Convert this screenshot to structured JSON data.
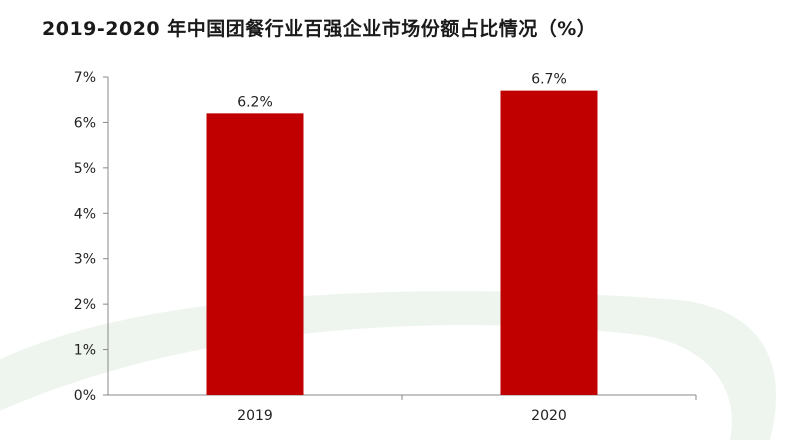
{
  "title": "2019-2020 年中国团餐行业百强企业市场份额占比情况（%）",
  "colors": {
    "bar": "#c00000",
    "background_swoosh": "#eef5ee",
    "axis": "#888888"
  },
  "chart_data": {
    "type": "bar",
    "title": "2019-2020 年中国团餐行业百强企业市场份额占比情况（%）",
    "categories": [
      "2019",
      "2020"
    ],
    "values": [
      6.2,
      6.7
    ],
    "data_labels": [
      "6.2%",
      "6.7%"
    ],
    "ylim": [
      0,
      7
    ],
    "yticks": [
      0,
      1,
      2,
      3,
      4,
      5,
      6,
      7
    ],
    "ytick_labels": [
      "0%",
      "1%",
      "2%",
      "3%",
      "4%",
      "5%",
      "6%",
      "7%"
    ],
    "xlabel": "",
    "ylabel": "",
    "grid": false,
    "legend": "none"
  }
}
